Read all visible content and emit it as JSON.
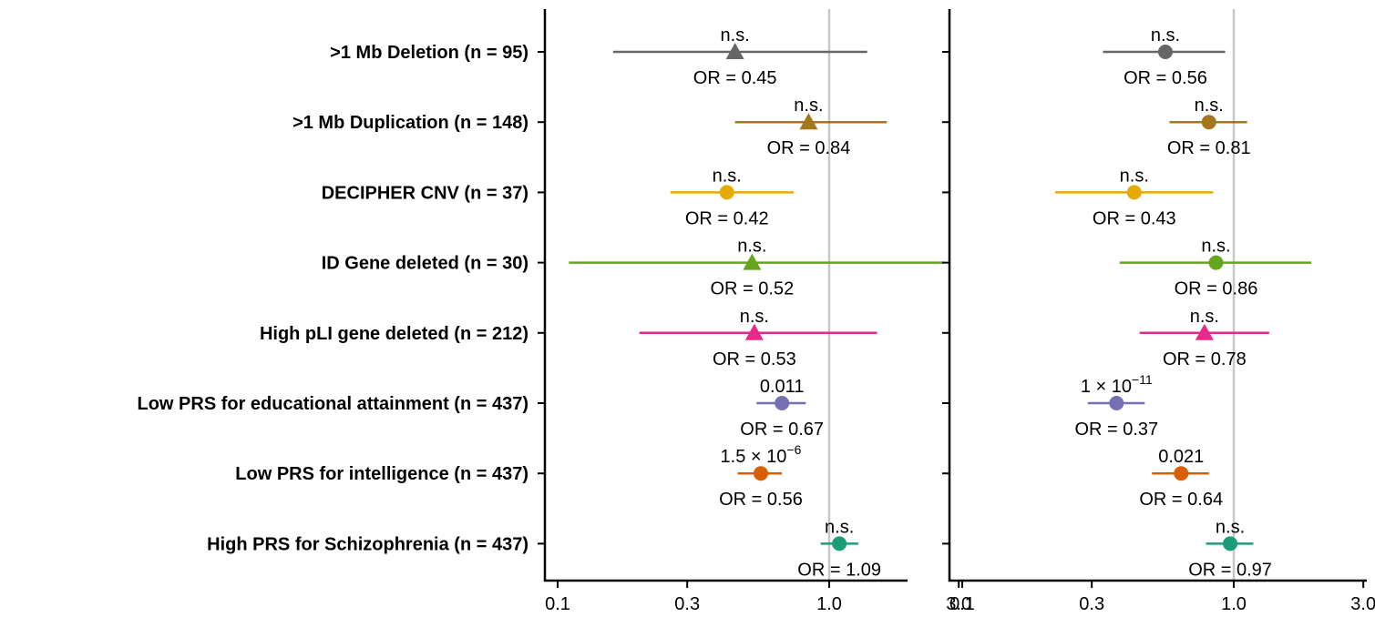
{
  "chart_data": {
    "type": "forest",
    "x_scale": "log",
    "xlim": [
      0.1,
      3.0
    ],
    "x_ticks": [
      0.1,
      0.3,
      1.0,
      3.0
    ],
    "x_tick_labels": [
      "0.1",
      "0.3",
      "1.0",
      "3.0"
    ],
    "reference_line": 1.0,
    "colors": {
      "deletion": "#666666",
      "duplication": "#a6761d",
      "decipher": "#e6ab02",
      "idgene": "#66a61e",
      "pli": "#e7298a",
      "edu": "#7570b3",
      "intel": "#d95f02",
      "scz": "#1b9e77",
      "refline": "#c8c8c8"
    },
    "categories": [
      ">1 Mb Deletion (n = 95)",
      ">1 Mb Duplication (n = 148)",
      "DECIPHER CNV (n = 37)",
      "ID Gene deleted (n = 30)",
      "High pLI gene deleted (n = 212)",
      "Low PRS for educational attainment (n = 437)",
      "Low PRS for intelligence (n = 437)",
      "High PRS for Schizophrenia (n = 437)"
    ],
    "panels": [
      {
        "rows": [
          {
            "or": 0.45,
            "lo": 0.16,
            "hi": 1.38,
            "marker": "triangle",
            "color": "deletion",
            "or_label": "OR = 0.45",
            "p_label": "n.s."
          },
          {
            "or": 0.84,
            "lo": 0.45,
            "hi": 1.63,
            "marker": "triangle",
            "color": "duplication",
            "or_label": "OR = 0.84",
            "p_label": "n.s."
          },
          {
            "or": 0.42,
            "lo": 0.26,
            "hi": 0.74,
            "marker": "circle",
            "color": "decipher",
            "or_label": "OR = 0.42",
            "p_label": "n.s."
          },
          {
            "or": 0.52,
            "lo": 0.11,
            "hi": 2.65,
            "marker": "triangle",
            "color": "idgene",
            "or_label": "OR = 0.52",
            "p_label": "n.s."
          },
          {
            "or": 0.53,
            "lo": 0.2,
            "hi": 1.5,
            "marker": "triangle",
            "color": "pli",
            "or_label": "OR = 0.53",
            "p_label": "n.s."
          },
          {
            "or": 0.67,
            "lo": 0.54,
            "hi": 0.82,
            "marker": "circle",
            "color": "edu",
            "or_label": "OR = 0.67",
            "p_base": "0.011",
            "p_exp": ""
          },
          {
            "or": 0.56,
            "lo": 0.46,
            "hi": 0.67,
            "marker": "circle",
            "color": "intel",
            "or_label": "OR = 0.56",
            "p_base": "1.5 × 10",
            "p_exp": "−6"
          },
          {
            "or": 1.09,
            "lo": 0.93,
            "hi": 1.28,
            "marker": "circle",
            "color": "scz",
            "or_label": "OR = 1.09",
            "p_label": "n.s."
          }
        ]
      },
      {
        "rows": [
          {
            "or": 0.56,
            "lo": 0.33,
            "hi": 0.93,
            "marker": "circle",
            "color": "deletion",
            "or_label": "OR = 0.56",
            "p_label": "n.s."
          },
          {
            "or": 0.81,
            "lo": 0.58,
            "hi": 1.12,
            "marker": "circle",
            "color": "duplication",
            "or_label": "OR = 0.81",
            "p_label": "n.s."
          },
          {
            "or": 0.43,
            "lo": 0.22,
            "hi": 0.84,
            "marker": "circle",
            "color": "decipher",
            "or_label": "OR = 0.43",
            "p_label": "n.s."
          },
          {
            "or": 0.86,
            "lo": 0.38,
            "hi": 1.93,
            "marker": "circle",
            "color": "idgene",
            "or_label": "OR = 0.86",
            "p_label": "n.s."
          },
          {
            "or": 0.78,
            "lo": 0.45,
            "hi": 1.35,
            "marker": "triangle",
            "color": "pli",
            "or_label": "OR = 0.78",
            "p_label": "n.s."
          },
          {
            "or": 0.37,
            "lo": 0.29,
            "hi": 0.47,
            "marker": "circle",
            "color": "edu",
            "or_label": "OR = 0.37",
            "p_base": "1 × 10",
            "p_exp": "−11"
          },
          {
            "or": 0.64,
            "lo": 0.5,
            "hi": 0.81,
            "marker": "circle",
            "color": "intel",
            "or_label": "OR = 0.64",
            "p_label": "0.021"
          },
          {
            "or": 0.97,
            "lo": 0.79,
            "hi": 1.18,
            "marker": "circle",
            "color": "scz",
            "or_label": "OR = 0.97",
            "p_label": "n.s."
          }
        ]
      }
    ]
  }
}
